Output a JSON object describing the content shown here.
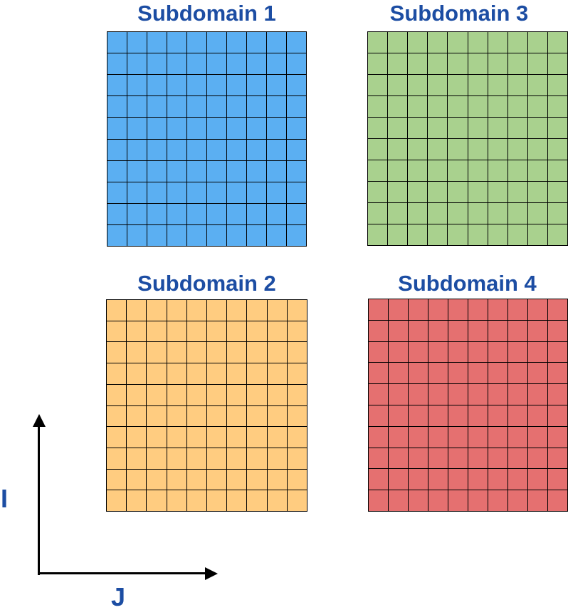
{
  "figure": {
    "background": "#ffffff",
    "label_color": "#1c4da3",
    "axis_color": "#000000",
    "grid_line_color": "#000000"
  },
  "subdomains": [
    {
      "label": "Subdomain 1",
      "fill": "#5baff2",
      "rows": 10,
      "cols": 10,
      "line_color": "#000000"
    },
    {
      "label": "Subdomain 2",
      "fill": "#ffcc80",
      "rows": 10,
      "cols": 10,
      "line_color": "#000000"
    },
    {
      "label": "Subdomain 3",
      "fill": "#a9d18e",
      "rows": 10,
      "cols": 10,
      "line_color": "#000000"
    },
    {
      "label": "Subdomain 4",
      "fill": "#e57070",
      "rows": 10,
      "cols": 10,
      "line_color": "#000000"
    }
  ],
  "axes": {
    "vertical_label": "I",
    "horizontal_label": "J"
  }
}
